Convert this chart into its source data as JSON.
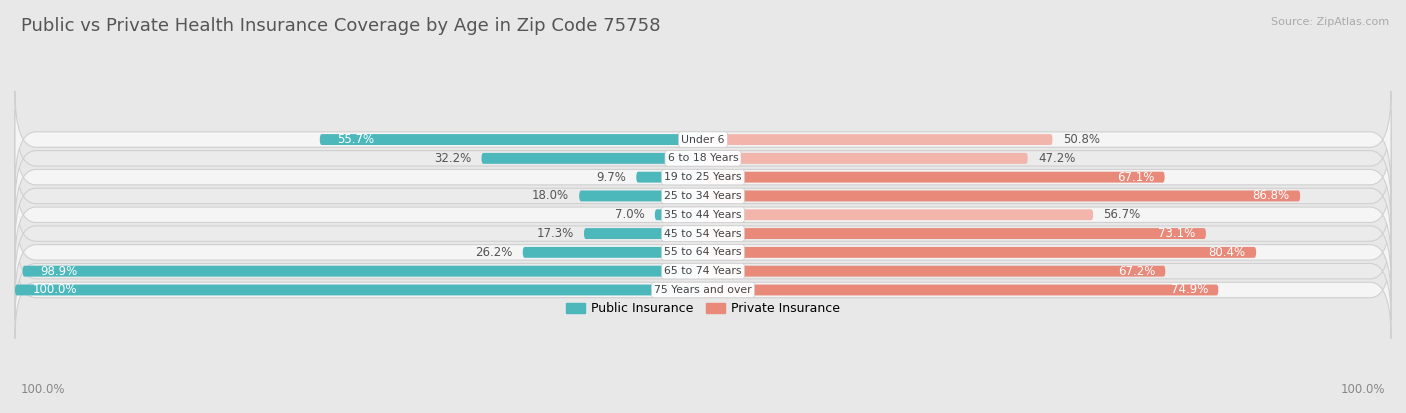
{
  "title": "Public vs Private Health Insurance Coverage by Age in Zip Code 75758",
  "source": "Source: ZipAtlas.com",
  "categories": [
    "Under 6",
    "6 to 18 Years",
    "19 to 25 Years",
    "25 to 34 Years",
    "35 to 44 Years",
    "45 to 54 Years",
    "55 to 64 Years",
    "65 to 74 Years",
    "75 Years and over"
  ],
  "public_values": [
    55.7,
    32.2,
    9.7,
    18.0,
    7.0,
    17.3,
    26.2,
    98.9,
    100.0
  ],
  "private_values": [
    50.8,
    47.2,
    67.1,
    86.8,
    56.7,
    73.1,
    80.4,
    67.2,
    74.9
  ],
  "public_color": "#4db8bc",
  "private_color": "#e8897a",
  "private_color_light": "#f2b5ac",
  "background_color": "#e8e8e8",
  "row_bg_even": "#f5f5f5",
  "row_bg_odd": "#ebebeb",
  "row_border_color": "#d0d0d0",
  "axis_label": "100.0%",
  "legend_public": "Public Insurance",
  "legend_private": "Private Insurance",
  "title_fontsize": 13,
  "label_fontsize": 8.5,
  "bar_height": 0.58,
  "max_value": 100.0,
  "white_text_threshold_pub": 55,
  "white_text_threshold_priv": 65
}
